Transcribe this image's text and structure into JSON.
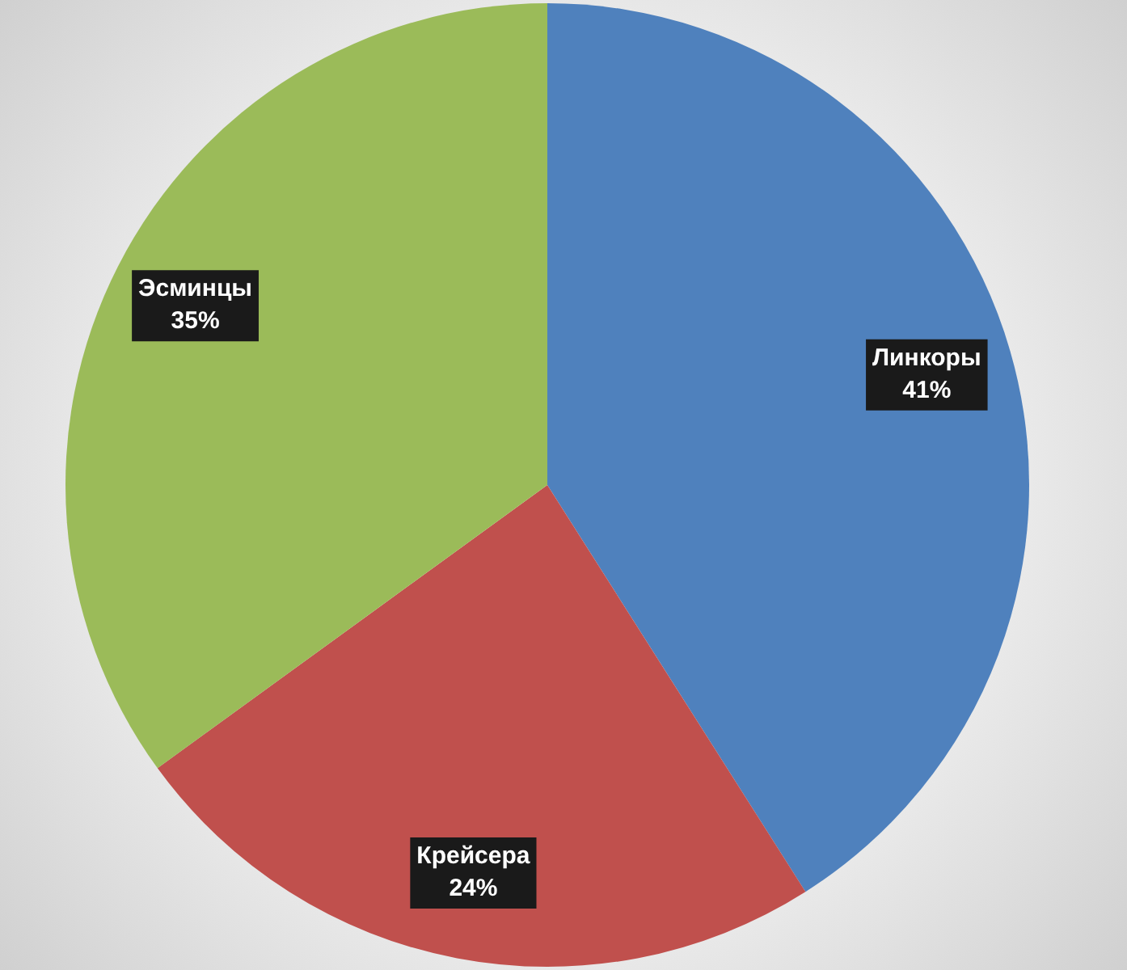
{
  "chart_data": {
    "type": "pie",
    "categories": [
      "Линкоры",
      "Крейсера",
      "Эсминцы"
    ],
    "values": [
      41,
      24,
      35
    ],
    "colors": [
      "#4f81bd",
      "#c0504d",
      "#9bbb59"
    ],
    "value_labels": [
      "41%",
      "24%",
      "35%"
    ],
    "legend": false
  }
}
